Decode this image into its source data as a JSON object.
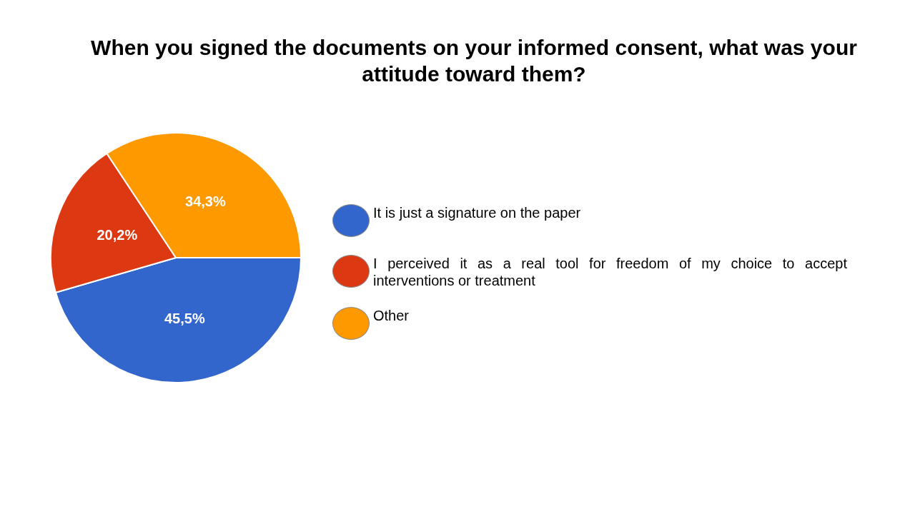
{
  "chart_data": {
    "type": "pie",
    "title": "When you signed the documents on your informed consent, what was your attitude toward them?",
    "categories": [
      "It is just a signature on the paper",
      "I perceived it as a real tool for freedom of my choice to accept interventions or treatment",
      "Other"
    ],
    "values": [
      45.5,
      20.2,
      34.3
    ],
    "colors": [
      "#3366cc",
      "#dc3912",
      "#ff9900"
    ],
    "value_labels": [
      "45,5%",
      "20,2%",
      "34,3%"
    ],
    "legend": "right"
  }
}
